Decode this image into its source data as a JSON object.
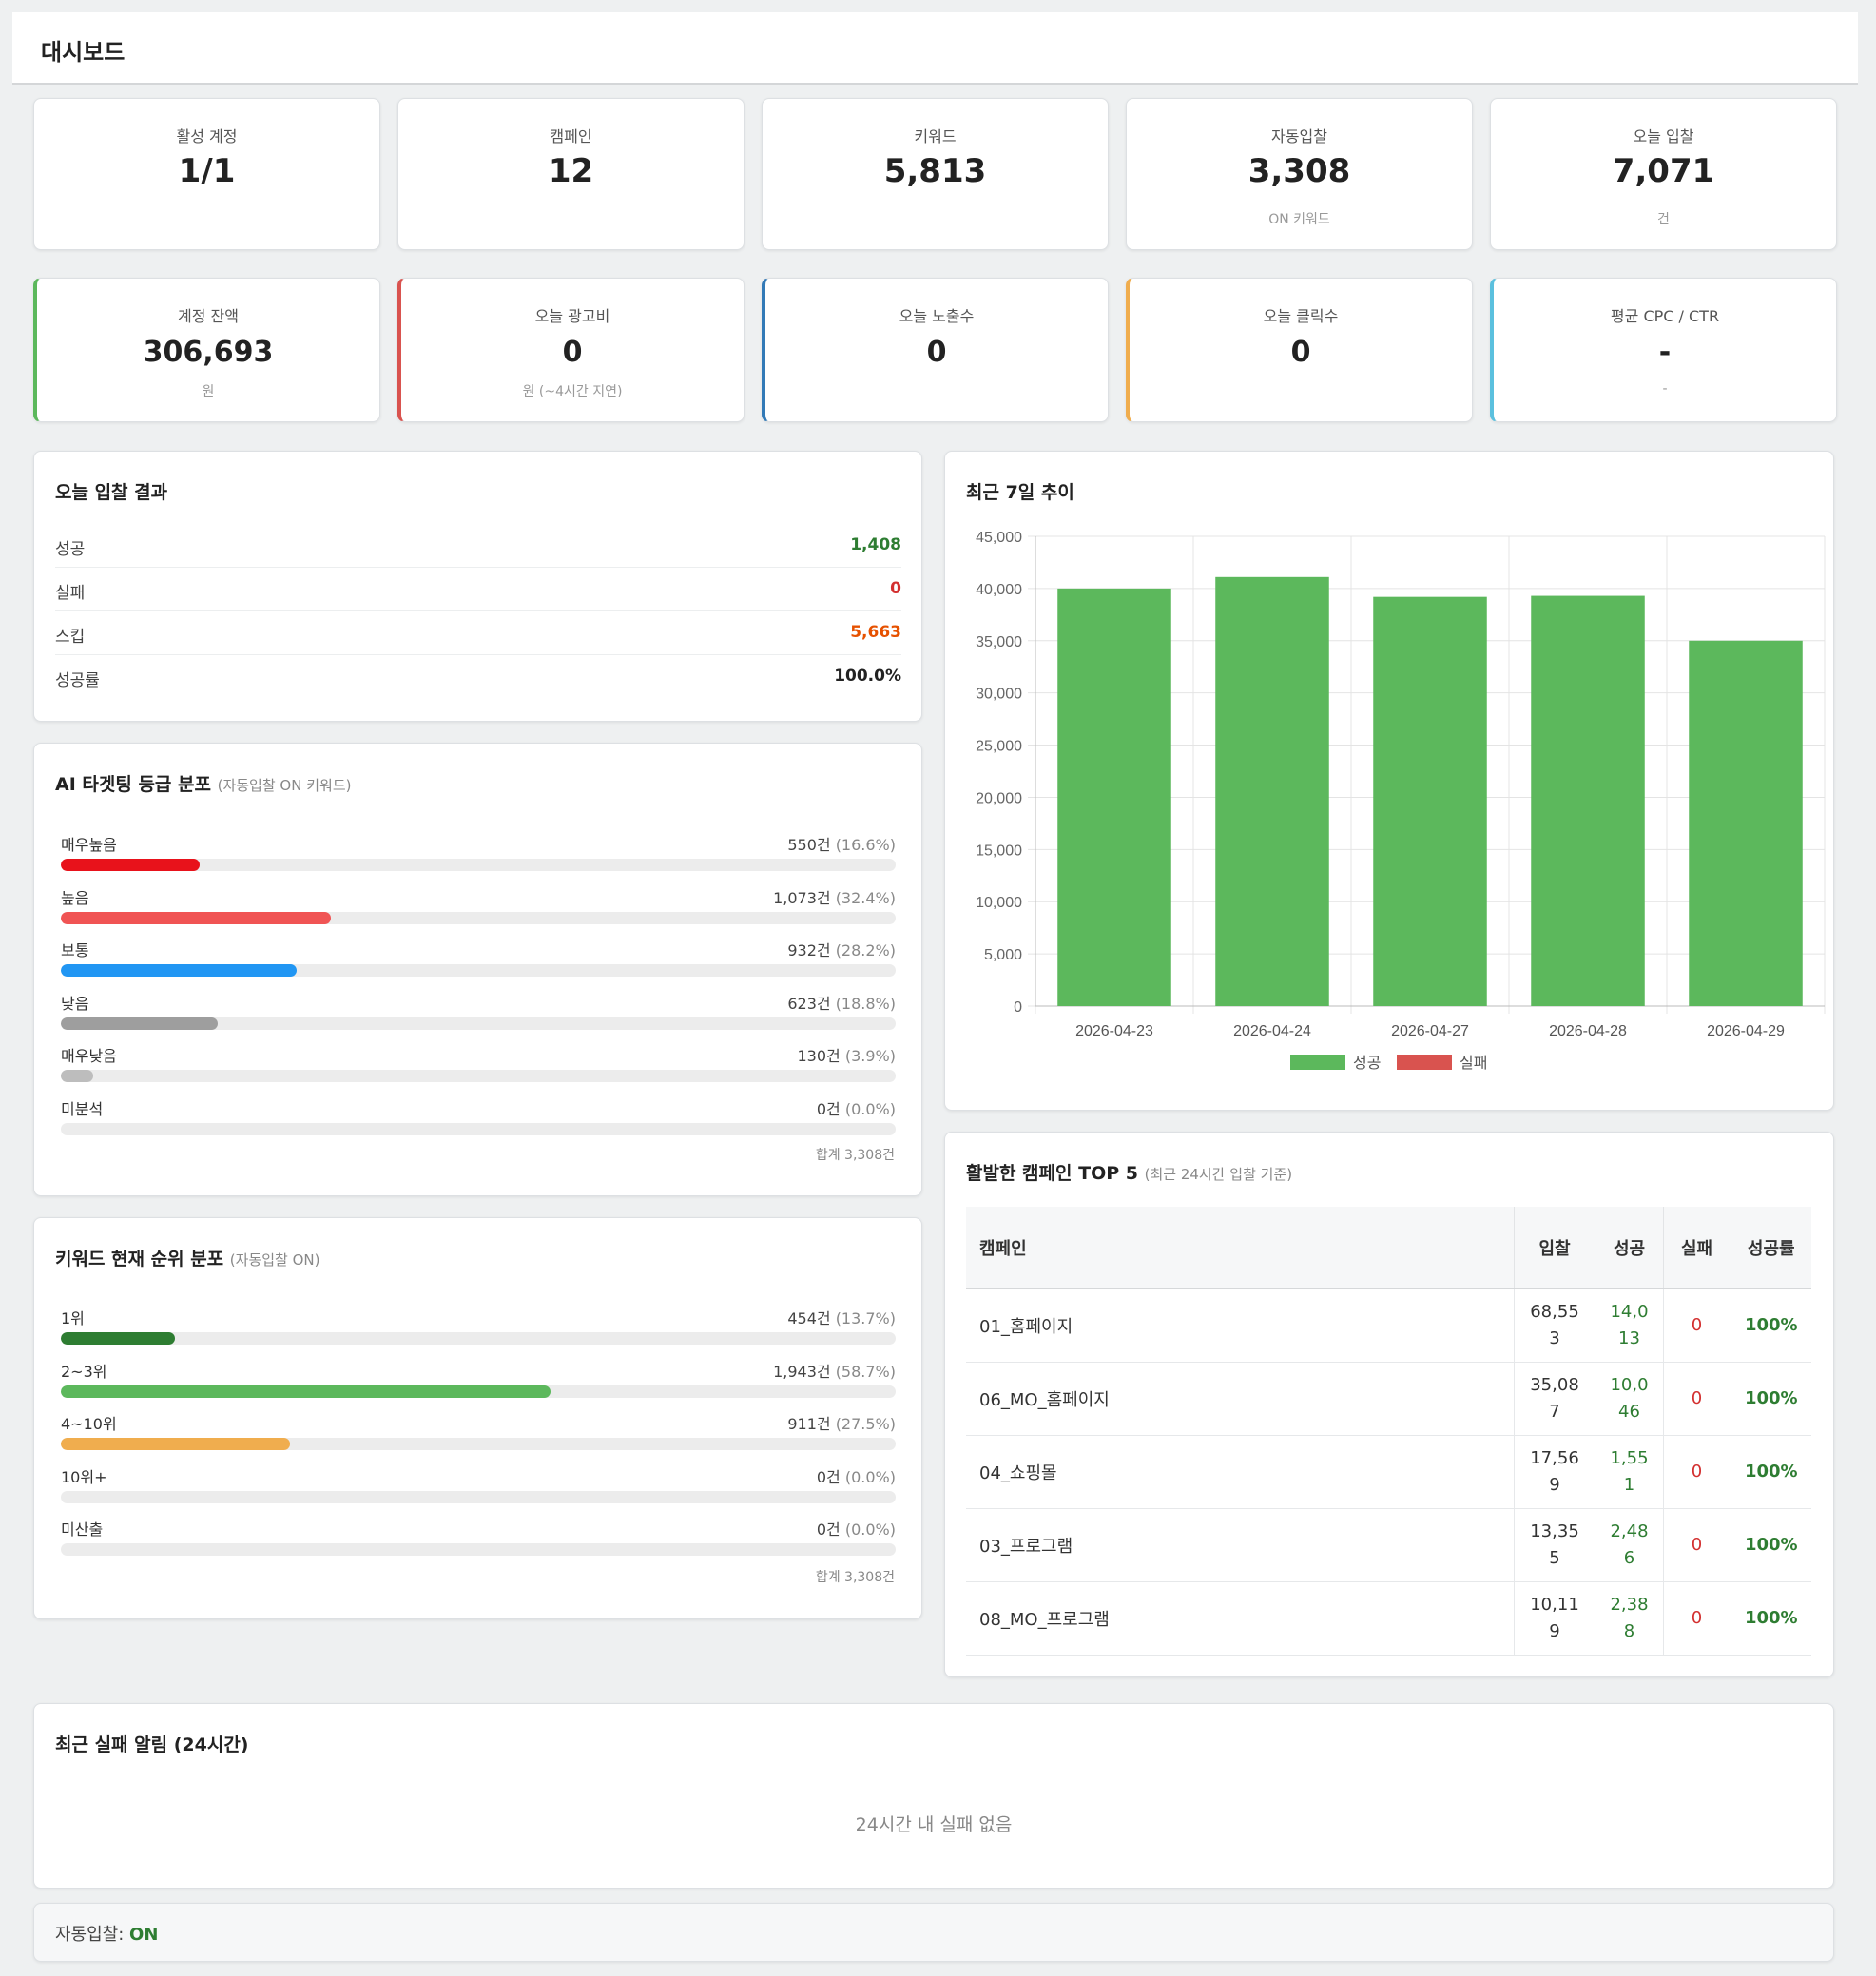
{
  "header": {
    "title": "대시보드"
  },
  "stats_top": [
    {
      "label": "활성 계정",
      "value": "1/1",
      "sub": ""
    },
    {
      "label": "캠페인",
      "value": "12",
      "sub": ""
    },
    {
      "label": "키워드",
      "value": "5,813",
      "sub": ""
    },
    {
      "label": "자동입찰",
      "value": "3,308",
      "sub": "ON 키워드"
    },
    {
      "label": "오늘 입찰",
      "value": "7,071",
      "sub": "건"
    }
  ],
  "stats_bottom": [
    {
      "label": "계정 잔액",
      "value": "306,693",
      "sub": "원",
      "accent": "#5cb85c"
    },
    {
      "label": "오늘 광고비",
      "value": "0",
      "sub": "원 (~4시간 지연)",
      "accent": "#d9534f"
    },
    {
      "label": "오늘 노출수",
      "value": "0",
      "sub": "",
      "accent": "#337ab7"
    },
    {
      "label": "오늘 클릭수",
      "value": "0",
      "sub": "",
      "accent": "#f0ad4e"
    },
    {
      "label": "평균 CPC / CTR",
      "value": "-",
      "sub": "-",
      "accent": "#5bc0de"
    }
  ],
  "bid_results": {
    "title": "오늘 입찰 결과",
    "rows": [
      {
        "label": "성공",
        "value": "1,408",
        "color": "#2e7d32"
      },
      {
        "label": "실패",
        "value": "0",
        "color": "#d32f2f"
      },
      {
        "label": "스킵",
        "value": "5,663",
        "color": "#e65100"
      },
      {
        "label": "성공률",
        "value": "100.0%",
        "color": "#222222"
      }
    ]
  },
  "ai_grade": {
    "title": "AI 타겟팅 등급 분포",
    "note": "(자동입찰 ON 키워드)",
    "items": [
      {
        "label": "매우높음",
        "count": "550건",
        "pct": "(16.6%)",
        "ratio": 0.166,
        "color": "#e8121b"
      },
      {
        "label": "높음",
        "count": "1,073건",
        "pct": "(32.4%)",
        "ratio": 0.324,
        "color": "#f05454"
      },
      {
        "label": "보통",
        "count": "932건",
        "pct": "(28.2%)",
        "ratio": 0.282,
        "color": "#2196f3"
      },
      {
        "label": "낮음",
        "count": "623건",
        "pct": "(18.8%)",
        "ratio": 0.188,
        "color": "#9e9e9e"
      },
      {
        "label": "매우낮음",
        "count": "130건",
        "pct": "(3.9%)",
        "ratio": 0.039,
        "color": "#bdbdbd"
      },
      {
        "label": "미분석",
        "count": "0건",
        "pct": "(0.0%)",
        "ratio": 0,
        "color": "#bdbdbd"
      }
    ],
    "total": "합계 3,308건"
  },
  "rank_dist": {
    "title": "키워드 현재 순위 분포",
    "note": "(자동입찰 ON)",
    "items": [
      {
        "label": "1위",
        "count": "454건",
        "pct": "(13.7%)",
        "ratio": 0.137,
        "color": "#2e7d32"
      },
      {
        "label": "2~3위",
        "count": "1,943건",
        "pct": "(58.7%)",
        "ratio": 0.587,
        "color": "#5cb85c"
      },
      {
        "label": "4~10위",
        "count": "911건",
        "pct": "(27.5%)",
        "ratio": 0.275,
        "color": "#f0ad4e"
      },
      {
        "label": "10위+",
        "count": "0건",
        "pct": "(0.0%)",
        "ratio": 0,
        "color": "#bdbdbd"
      },
      {
        "label": "미산출",
        "count": "0건",
        "pct": "(0.0%)",
        "ratio": 0,
        "color": "#bdbdbd"
      }
    ],
    "total": "합계 3,308건"
  },
  "trend": {
    "title": "최근 7일 추이"
  },
  "chart_data": {
    "type": "bar",
    "categories": [
      "2026-04-23",
      "2026-04-24",
      "2026-04-27",
      "2026-04-28",
      "2026-04-29"
    ],
    "series": [
      {
        "name": "성공",
        "values": [
          40000,
          41100,
          39200,
          39300,
          35000
        ],
        "color": "#5cb85c"
      },
      {
        "name": "실패",
        "values": [
          0,
          0,
          0,
          0,
          0
        ],
        "color": "#d9534f"
      }
    ],
    "ylim": [
      0,
      45000
    ],
    "yticks": [
      "0",
      "5,000",
      "10,000",
      "15,000",
      "20,000",
      "25,000",
      "30,000",
      "35,000",
      "40,000",
      "45,000"
    ],
    "grid": true,
    "legend": "bottom"
  },
  "top_campaigns": {
    "title": "활발한 캠페인 TOP 5",
    "note": "(최근 24시간 입찰 기준)",
    "headers": [
      "캠페인",
      "입찰",
      "성공",
      "실패",
      "성공률"
    ],
    "rows": [
      {
        "name": "01_홈페이지",
        "bids": [
          "68,55",
          "3"
        ],
        "success": [
          "14,0",
          "13"
        ],
        "fail": "0",
        "rate": "100%"
      },
      {
        "name": "06_MO_홈페이지",
        "bids": [
          "35,08",
          "7"
        ],
        "success": [
          "10,0",
          "46"
        ],
        "fail": "0",
        "rate": "100%"
      },
      {
        "name": "04_쇼핑몰",
        "bids": [
          "17,56",
          "9"
        ],
        "success": [
          "1,55",
          "1"
        ],
        "fail": "0",
        "rate": "100%"
      },
      {
        "name": "03_프로그램",
        "bids": [
          "13,35",
          "5"
        ],
        "success": [
          "2,48",
          "6"
        ],
        "fail": "0",
        "rate": "100%"
      },
      {
        "name": "08_MO_프로그램",
        "bids": [
          "10,11",
          "9"
        ],
        "success": [
          "2,38",
          "8"
        ],
        "fail": "0",
        "rate": "100%"
      }
    ]
  },
  "failures": {
    "title": "최근 실패 알림 (24시간)",
    "empty": "24시간 내 실패 없음"
  },
  "status": {
    "label": "자동입찰:",
    "value": "ON"
  }
}
